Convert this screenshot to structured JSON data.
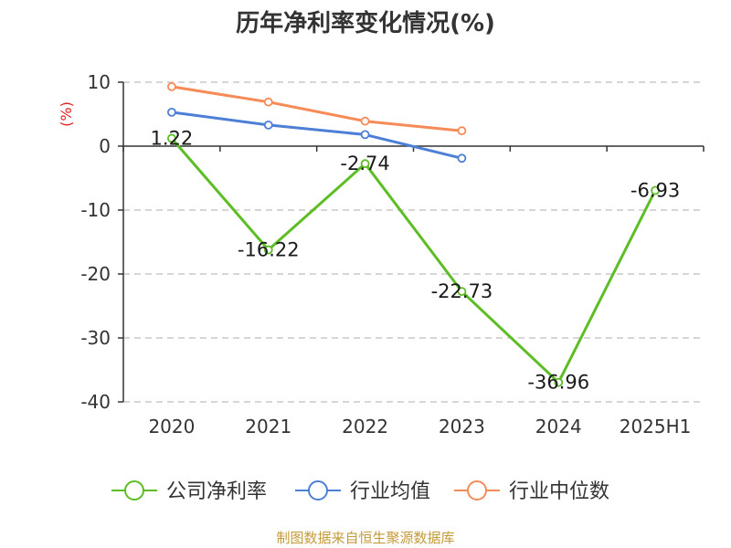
{
  "chart_data": {
    "type": "line",
    "title": "历年净利率变化情况(%)",
    "ylabel": "(%)",
    "categories": [
      "2020",
      "2021",
      "2022",
      "2023",
      "2024",
      "2025H1"
    ],
    "ylim": [
      -40,
      10
    ],
    "yticks": [
      10,
      0,
      -10,
      -20,
      -30,
      -40
    ],
    "ytick_labels": [
      "10",
      "0",
      "-10",
      "-20",
      "-30",
      "-40"
    ],
    "grid": true,
    "legend_position": "bottom",
    "series": [
      {
        "name": "公司净利率",
        "color": "#5cbd25",
        "values": [
          1.22,
          -16.22,
          -2.74,
          -22.73,
          -36.96,
          -6.93
        ],
        "labels": [
          "1.22",
          "-16.22",
          "-2.74",
          "-22.73",
          "-36.96",
          "-6.93"
        ]
      },
      {
        "name": "行业均值",
        "color": "#4e7fd6",
        "values": [
          5.3,
          3.3,
          1.8,
          -1.9,
          null,
          null
        ]
      },
      {
        "name": "行业中位数",
        "color": "#f68b57",
        "values": [
          9.3,
          6.9,
          3.9,
          2.4,
          null,
          null
        ]
      }
    ],
    "source": "制图数据来自恒生聚源数据库",
    "source_color": "#c49a3a",
    "ylabel_color": "#e02020"
  }
}
